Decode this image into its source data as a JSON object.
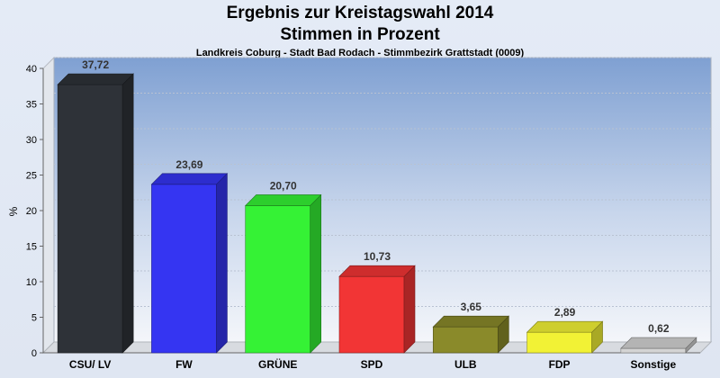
{
  "chart_data": {
    "type": "bar",
    "title": "Ergebnis zur Kreistagswahl 2014",
    "subtitle": "Stimmen in Prozent",
    "caption": "Landkreis Coburg - Stadt Bad Rodach - Stimmbezirk Grattstadt (0009)",
    "ylabel": "%",
    "ylim": [
      0,
      40
    ],
    "yticks": [
      0,
      5,
      10,
      15,
      20,
      25,
      30,
      35,
      40
    ],
    "grid": true,
    "categories": [
      "CSU/ LV",
      "FW",
      "GRÜNE",
      "SPD",
      "ULB",
      "FDP",
      "Sonstige"
    ],
    "values": [
      37.72,
      23.69,
      20.7,
      10.73,
      3.65,
      2.89,
      0.62
    ],
    "value_labels": [
      "37,72",
      "23,69",
      "20,70",
      "10,73",
      "3,65",
      "2,89",
      "0,62"
    ],
    "colors": [
      "#2e3238",
      "#3535f2",
      "#35f235",
      "#f23535",
      "#8a8a2a",
      "#f2f235",
      "#d4d4d4"
    ]
  }
}
